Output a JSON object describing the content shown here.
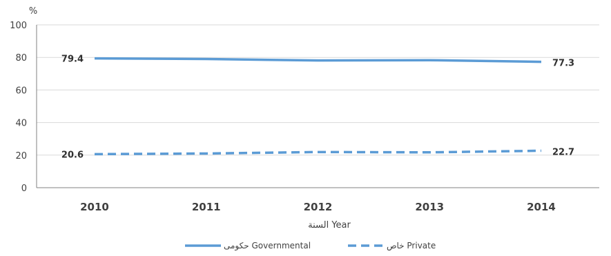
{
  "chart_data": {
    "type": "line",
    "categories": [
      "2010",
      "2011",
      "2012",
      "2013",
      "2014"
    ],
    "y_unit": "%",
    "xlabel": "السنة Year",
    "ylabel": "",
    "ylim": [
      0,
      100
    ],
    "yticks": [
      0,
      20,
      40,
      60,
      80,
      100
    ],
    "grid": true,
    "legend_position": "bottom",
    "series": [
      {
        "name": "حكومى Governmental",
        "values": [
          79.4,
          79.0,
          78.1,
          78.3,
          77.3
        ],
        "style": "solid",
        "color": "#5B9BD5",
        "end_labels": [
          "79.4",
          "77.3"
        ]
      },
      {
        "name": "خاص Private",
        "values": [
          20.6,
          21.0,
          21.9,
          21.7,
          22.7
        ],
        "style": "dashed",
        "color": "#5B9BD5",
        "end_labels": [
          "20.6",
          "22.7"
        ]
      }
    ]
  },
  "colors": {
    "gridline": "#D9D9D9",
    "axis": "#808080",
    "series": "#5B9BD5"
  }
}
